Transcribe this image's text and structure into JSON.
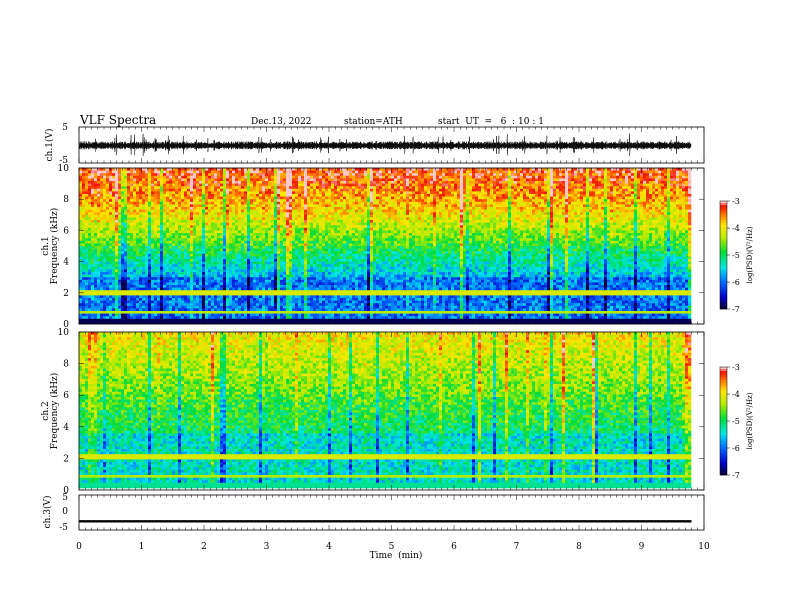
{
  "header": {
    "title": "VLF  Spectra",
    "date": "Dec.13, 2022",
    "station": "station=ATH",
    "start": "start  UT  =   6  : 10 : 1"
  },
  "chart_data": [
    {
      "type": "line",
      "name": "ch1-waveform",
      "ylabel": "ch.1(V)",
      "ylim": [
        -5,
        5
      ],
      "y_ticks": [
        "5",
        "-5"
      ],
      "xlim": [
        0,
        10
      ],
      "x_extent_min": 9.8,
      "baseline": -0.2
    },
    {
      "type": "heatmap",
      "name": "ch1-spectrogram",
      "ylabel_channel": "ch.1",
      "ylabel": "Frequency  (kHz)",
      "ylim": [
        0,
        10
      ],
      "y_ticks": [
        "0",
        "2",
        "4",
        "6",
        "8",
        "10"
      ],
      "xlim": [
        0,
        10
      ],
      "x_extent_min": 9.8,
      "colorbar": {
        "label": "log(PSD)(V²/Hz)",
        "range": [
          -7,
          -3
        ],
        "ticks": [
          "-3",
          "-4",
          "-5",
          "-6",
          "-7"
        ]
      }
    },
    {
      "type": "heatmap",
      "name": "ch2-spectrogram",
      "ylabel_channel": "ch.2",
      "ylabel": "Frequency  (kHz)",
      "ylim": [
        0,
        10
      ],
      "y_ticks": [
        "0",
        "2",
        "4",
        "6",
        "8",
        "10"
      ],
      "xlim": [
        0,
        10
      ],
      "x_extent_min": 9.8,
      "colorbar": {
        "label": "log(PSD)(V²/Hz)",
        "range": [
          -7,
          -3
        ],
        "ticks": [
          "-3",
          "-4",
          "-5",
          "-6",
          "-7"
        ]
      }
    },
    {
      "type": "line",
      "name": "ch3-waveform",
      "ylabel": "ch.3(V)",
      "ylim": [
        -5,
        5
      ],
      "y_ticks": [
        "5",
        "0",
        "-5"
      ],
      "xlim": [
        0,
        10
      ],
      "x_extent_min": 9.8,
      "baseline": -2.5,
      "xlabel": "Time  (min)",
      "x_ticks": [
        "0",
        "1",
        "2",
        "3",
        "4",
        "5",
        "6",
        "7",
        "8",
        "9",
        "10"
      ]
    }
  ]
}
